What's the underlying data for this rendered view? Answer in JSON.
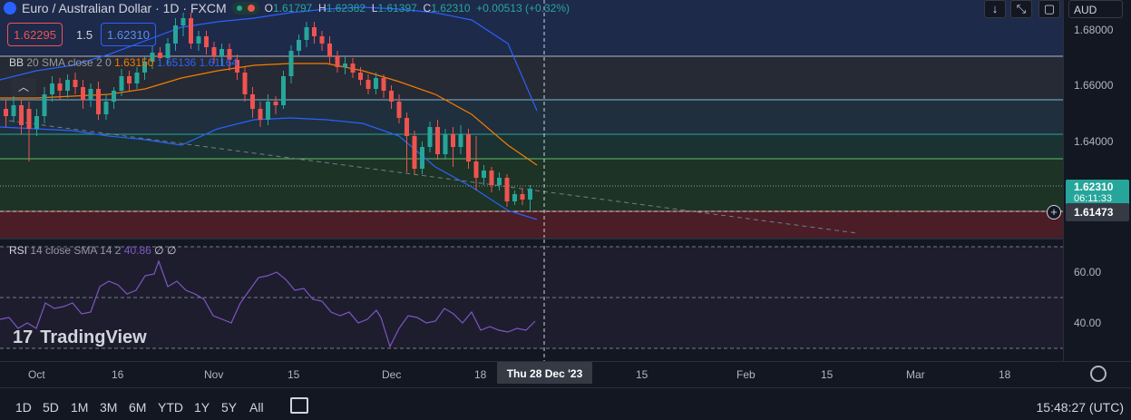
{
  "header": {
    "symbol_title": "Euro / Australian Dollar · 1D · FXCM",
    "ohlc": {
      "o_label": "O",
      "o_value": "1.61797",
      "h_label": "H",
      "h_value": "1.62382",
      "l_label": "L",
      "l_value": "1.61397",
      "c_label": "C",
      "c_value": "1.62310",
      "change": "+0.00513 (+0.32%)"
    },
    "currency": "AUD"
  },
  "trade": {
    "sell_price": "1.62295",
    "spread": "1.5",
    "buy_price": "1.62310"
  },
  "bb_legend": {
    "name": "BB",
    "params": "20 SMA close 2 0",
    "basis": "1.63150",
    "upper": "1.65136",
    "lower": "1.61164"
  },
  "rsi_legend": {
    "name": "RSI",
    "params": "14 close SMA 14 2",
    "value": "40.86",
    "extra1": "∅",
    "extra2": "∅"
  },
  "price_axis": {
    "labels": [
      "1.68000",
      "1.66000",
      "1.64000"
    ],
    "current_price": "1.62310",
    "countdown": "06:11:33",
    "crosshair_price": "1.61473"
  },
  "rsi_axis": {
    "labels": [
      "60.00",
      "40.00"
    ]
  },
  "time_axis": {
    "labels": [
      "Oct",
      "16",
      "Nov",
      "15",
      "Dec",
      "18",
      "15",
      "Feb",
      "15",
      "Mar",
      "18"
    ],
    "crosshair_date": "Thu 28 Dec '23"
  },
  "watermark": "TradingView",
  "bottom_bar": {
    "ranges": [
      "1D",
      "5D",
      "1M",
      "3M",
      "6M",
      "YTD",
      "1Y",
      "5Y",
      "All"
    ],
    "clock": "15:48:27 (UTC)"
  },
  "colors": {
    "up": "#26a69a",
    "down": "#ef5350",
    "bb_basis": "#f57c00",
    "bb_band": "#2962ff",
    "rsi": "#7e57c2",
    "background": "#131722"
  },
  "icons": [
    "arrow-down-icon",
    "collapse-icon",
    "screenshot-icon",
    "settings-icon",
    "calendar-range-icon",
    "crosshair-plus-icon",
    "tradingview-logo-icon"
  ]
}
